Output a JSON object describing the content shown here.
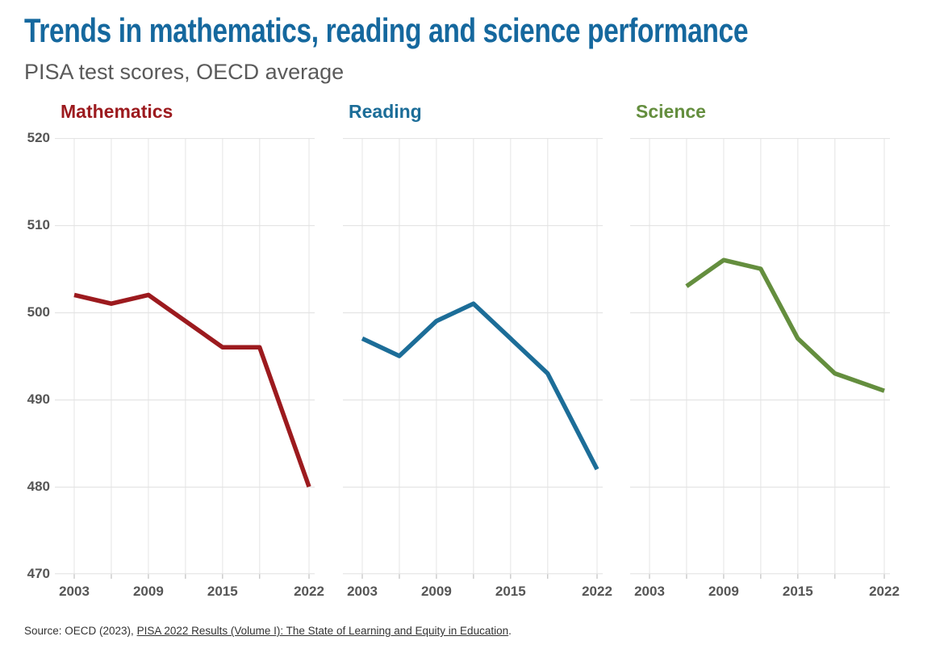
{
  "header": {
    "title": "Trends in mathematics, reading and science performance",
    "subtitle": "PISA test scores, OECD average"
  },
  "chart_data": {
    "type": "line",
    "layout": "small-multiples (3 panels, shared axes)",
    "x": [
      2003,
      2006,
      2009,
      2012,
      2015,
      2018,
      2022
    ],
    "x_tick_labels": [
      "2003",
      "2009",
      "2015",
      "2022"
    ],
    "x_tick_years": [
      2003,
      2009,
      2015,
      2022
    ],
    "ylim": [
      470,
      520
    ],
    "y_ticks": [
      "520",
      "510",
      "500",
      "490",
      "480",
      "470"
    ],
    "y_tick_values": [
      520,
      510,
      500,
      490,
      480,
      470
    ],
    "grid": true,
    "legend": "none (colored panel titles act as legend)",
    "panels": [
      {
        "title": "Mathematics",
        "color": "#9c1a1e",
        "values": [
          502,
          501,
          502,
          499,
          496,
          496,
          480
        ]
      },
      {
        "title": "Reading",
        "color": "#1c6d98",
        "values": [
          497,
          495,
          499,
          501,
          497,
          493,
          482
        ]
      },
      {
        "title": "Science",
        "color": "#648e3e",
        "values": [
          null,
          503,
          506,
          505,
          497,
          493,
          491
        ]
      }
    ]
  },
  "source": {
    "prefix": "Source: OECD (2023), ",
    "link_text": "PISA 2022 Results (Volume I): The State of Learning and Equity in Education",
    "suffix": "."
  },
  "colors": {
    "title_accent": "#15689e",
    "subtitle_text": "#5a5a5a",
    "grid_horizontal": "#e4e4e4",
    "grid_vertical": "#ececec",
    "axis_tick": "#c9c9c9",
    "axis_text": "#565656",
    "source_text": "#333333",
    "background": "#ffffff"
  }
}
